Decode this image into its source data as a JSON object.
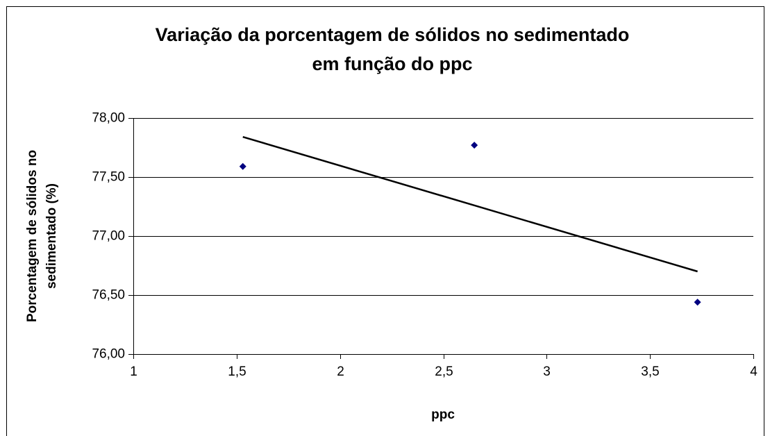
{
  "chart_data": {
    "type": "scatter",
    "title": [
      "Variação da porcentagem de sólidos no sedimentado",
      "em função do ppc"
    ],
    "xlabel": "ppc",
    "ylabel": [
      "Porcentagem de sólidos no",
      "sedimentado (%)"
    ],
    "x": [
      1.53,
      2.65,
      3.73
    ],
    "values": [
      77.59,
      77.77,
      76.44
    ],
    "color": "#000080",
    "trendline": {
      "x": [
        1.53,
        3.73
      ],
      "values": [
        77.84,
        76.7
      ],
      "color": "#000000"
    },
    "xlim": [
      1,
      4
    ],
    "xticks": [
      1,
      {
        "value": 1.5,
        "label": "1,5"
      },
      2,
      {
        "value": 2.5,
        "label": "2,5"
      },
      3,
      {
        "value": 3.5,
        "label": "3,5"
      },
      4
    ],
    "ylim": [
      76,
      78
    ],
    "yticks": [
      {
        "value": 76,
        "label": "76,00"
      },
      {
        "value": 76.5,
        "label": "76,50"
      },
      {
        "value": 77,
        "label": "77,00"
      },
      {
        "value": 77.5,
        "label": "77,50"
      },
      {
        "value": 78,
        "label": "78,00"
      }
    ],
    "grid": true
  }
}
